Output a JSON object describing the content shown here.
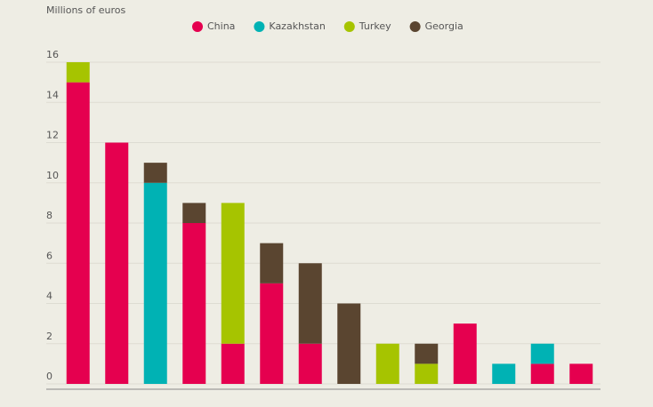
{
  "chart_data": {
    "type": "stacked_bar",
    "subtitle": "Millions of euros",
    "categories": [
      null,
      null,
      null,
      null,
      null,
      null,
      null,
      null,
      null,
      null,
      null,
      null,
      null,
      null
    ],
    "series": [
      {
        "name": "China",
        "color": "#e5004f",
        "values": [
          15,
          12,
          null,
          8,
          2,
          5,
          2,
          null,
          null,
          null,
          3,
          null,
          1,
          1
        ]
      },
      {
        "name": "Kazakhstan",
        "color": "#00b2b4",
        "values": [
          null,
          null,
          10,
          null,
          null,
          null,
          null,
          null,
          null,
          null,
          null,
          1,
          1,
          null
        ]
      },
      {
        "name": "Turkey",
        "color": "#a6c400",
        "values": [
          1,
          null,
          null,
          null,
          7,
          null,
          null,
          null,
          2,
          1,
          null,
          null,
          null,
          null
        ]
      },
      {
        "name": "Georgia",
        "color": "#5a4530",
        "values": [
          null,
          null,
          1,
          1,
          null,
          2,
          4,
          4,
          null,
          1,
          null,
          null,
          null,
          null
        ]
      }
    ],
    "ylim": [
      0,
      16
    ],
    "yticks": [
      0,
      2,
      4,
      6,
      8,
      10,
      12,
      14,
      16
    ],
    "grid": true
  }
}
